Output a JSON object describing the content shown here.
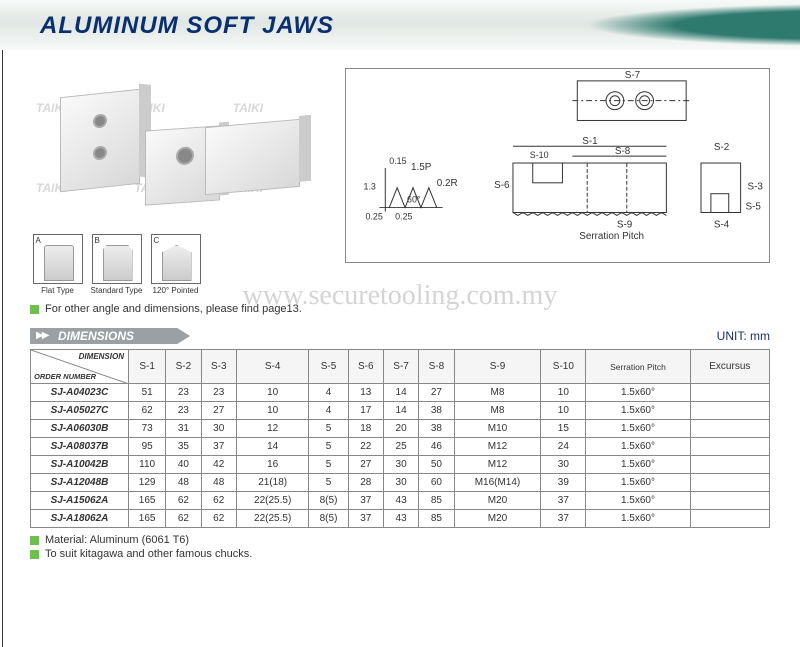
{
  "header": {
    "title": "ALUMINUM SOFT JAWS"
  },
  "watermark_brand": "TAIKI",
  "url_watermark": "www.securetooling.com.my",
  "type_icons": [
    {
      "letter": "A",
      "label": "Flat Type"
    },
    {
      "letter": "B",
      "label": "Standard Type"
    },
    {
      "letter": "C",
      "label": "120° Pointed"
    }
  ],
  "tech_labels": {
    "s1": "S-1",
    "s2": "S-2",
    "s3": "S-3",
    "s4": "S-4",
    "s5": "S-5",
    "s6": "S-6",
    "s7": "S-7",
    "s8": "S-8",
    "s9": "S-9",
    "s10": "S-10",
    "serration": "Serration Pitch",
    "p15": "1.5P",
    "r02": "0.2R",
    "a60": "60°",
    "d13": "1.3",
    "d015a": "0.15",
    "d025l": "0.25",
    "d025r": "0.25"
  },
  "note_page13": "For other angle and dimensions,  please find page13.",
  "section": {
    "label": "DIMENSIONS",
    "unit": "UNIT: mm"
  },
  "table": {
    "corner_top": "DIMENSION",
    "corner_bottom": "ORDER NUMBER",
    "columns": [
      "S-1",
      "S-2",
      "S-3",
      "S-4",
      "S-5",
      "S-6",
      "S-7",
      "S-8",
      "S-9",
      "S-10",
      "Serration Pitch",
      "Excursus"
    ],
    "rows": [
      {
        "order": "SJ-A04023C",
        "cells": [
          "51",
          "23",
          "23",
          "10",
          "4",
          "13",
          "14",
          "27",
          "M8",
          "10",
          "1.5x60°",
          ""
        ]
      },
      {
        "order": "SJ-A05027C",
        "cells": [
          "62",
          "23",
          "27",
          "10",
          "4",
          "17",
          "14",
          "38",
          "M8",
          "10",
          "1.5x60°",
          ""
        ]
      },
      {
        "order": "SJ-A06030B",
        "cells": [
          "73",
          "31",
          "30",
          "12",
          "5",
          "18",
          "20",
          "38",
          "M10",
          "15",
          "1.5x60°",
          ""
        ]
      },
      {
        "order": "SJ-A08037B",
        "cells": [
          "95",
          "35",
          "37",
          "14",
          "5",
          "22",
          "25",
          "46",
          "M12",
          "24",
          "1.5x60°",
          ""
        ]
      },
      {
        "order": "SJ-A10042B",
        "cells": [
          "110",
          "40",
          "42",
          "16",
          "5",
          "27",
          "30",
          "50",
          "M12",
          "30",
          "1.5x60°",
          ""
        ]
      },
      {
        "order": "SJ-A12048B",
        "cells": [
          "129",
          "48",
          "48",
          "21(18)",
          "5",
          "28",
          "30",
          "60",
          "M16(M14)",
          "39",
          "1.5x60°",
          ""
        ]
      },
      {
        "order": "SJ-A15062A",
        "cells": [
          "165",
          "62",
          "62",
          "22(25.5)",
          "8(5)",
          "37",
          "43",
          "85",
          "M20",
          "37",
          "1.5x60°",
          ""
        ]
      },
      {
        "order": "SJ-A18062A",
        "cells": [
          "165",
          "62",
          "62",
          "22(25.5)",
          "8(5)",
          "37",
          "43",
          "85",
          "M20",
          "37",
          "1.5x60°",
          ""
        ]
      }
    ]
  },
  "footer_notes": [
    "Material: Aluminum (6061 T6)",
    "To suit kitagawa and other famous chucks."
  ],
  "colors": {
    "title": "#0a2f6e",
    "bullet": "#6fbf4f",
    "section_bar": "#9aa0a4",
    "swoosh": "#2e7a6e",
    "border": "#888888"
  }
}
